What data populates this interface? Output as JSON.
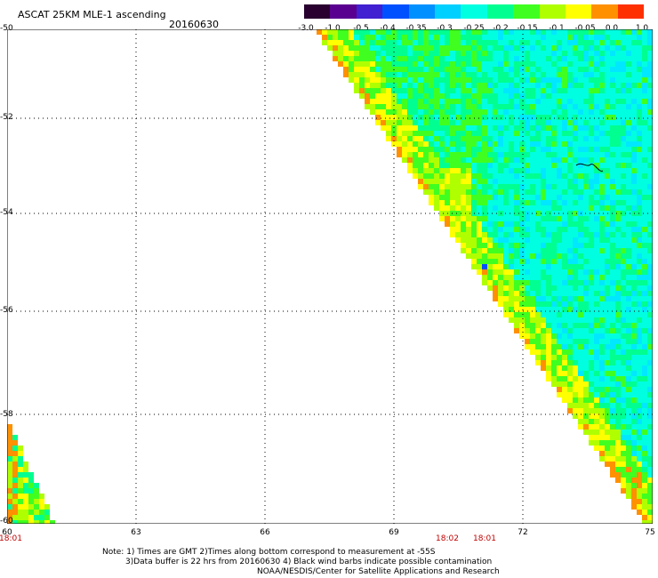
{
  "header": {
    "title": "ASCAT 25KM MLE-1 ascending",
    "date": "20160630"
  },
  "colorbar": {
    "labels": [
      "-3.0",
      "-1.0",
      "-0.5",
      "-0.4",
      "-0.35",
      "-0.3",
      "-0.25",
      "-0.2",
      "-0.15",
      "-0.1",
      "-0.05",
      "0.0",
      "1.0"
    ],
    "colors": [
      "#2a0030",
      "#5a0090",
      "#4020d0",
      "#0050ff",
      "#0090ff",
      "#00d0ff",
      "#00ffe0",
      "#00ff90",
      "#40ff20",
      "#b0ff00",
      "#ffff00",
      "#ff9000",
      "#ff3000"
    ]
  },
  "map": {
    "lat_labels": [
      "-50",
      "-52",
      "-54",
      "-56",
      "-58",
      "-60"
    ],
    "lon_labels": [
      "60",
      "63",
      "66",
      "69",
      "72",
      "75"
    ],
    "time_labels": [
      "18:01",
      "18:02",
      "18:01"
    ]
  },
  "notes": {
    "line1": "Note: 1) Times are GMT 2)Times along bottom correspond to measurement at -55S",
    "line2": "3)Data buffer is 22 hrs from 20160630 4) Black wind barbs indicate possible contamination",
    "line3": "NOAA/NESDIS/Center for Satellite Applications and Research"
  }
}
